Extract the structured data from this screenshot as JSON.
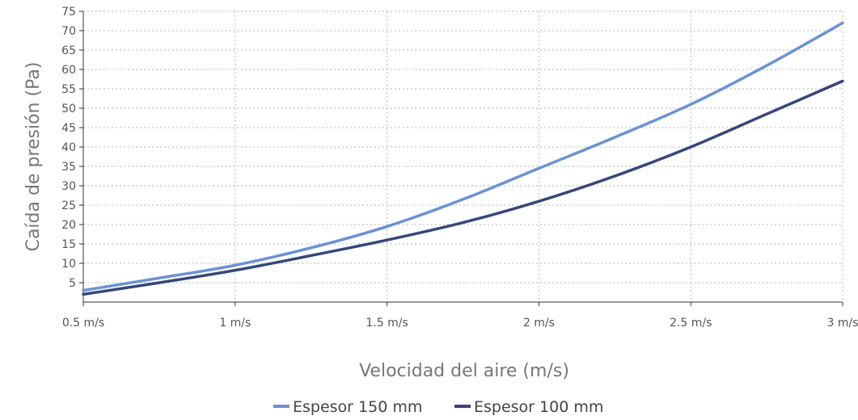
{
  "chart_data": {
    "type": "line",
    "title": "",
    "xlabel": "Velocidad del aire (m/s)",
    "ylabel": "Caída de presión (Pa)",
    "xlim": [
      0.5,
      3
    ],
    "ylim": [
      0,
      75
    ],
    "grid": true,
    "legend_position": "bottom",
    "x_ticks": [
      {
        "value": 0.5,
        "label": "0.5 m/s"
      },
      {
        "value": 1,
        "label": "1 m/s"
      },
      {
        "value": 1.5,
        "label": "1.5 m/s"
      },
      {
        "value": 2,
        "label": "2 m/s"
      },
      {
        "value": 2.5,
        "label": "2.5 m/s"
      },
      {
        "value": 3,
        "label": "3 m/s"
      }
    ],
    "y_ticks": [
      {
        "value": 5,
        "label": "5"
      },
      {
        "value": 10,
        "label": "10"
      },
      {
        "value": 15,
        "label": "15"
      },
      {
        "value": 20,
        "label": "20"
      },
      {
        "value": 25,
        "label": "25"
      },
      {
        "value": 30,
        "label": "30"
      },
      {
        "value": 35,
        "label": "35"
      },
      {
        "value": 40,
        "label": "40"
      },
      {
        "value": 45,
        "label": "45"
      },
      {
        "value": 50,
        "label": "50"
      },
      {
        "value": 55,
        "label": "55"
      },
      {
        "value": 60,
        "label": "60"
      },
      {
        "value": 65,
        "label": "65"
      },
      {
        "value": 70,
        "label": "70"
      },
      {
        "value": 75,
        "label": "75"
      }
    ],
    "series": [
      {
        "name": "Espesor 150 mm",
        "color": "#6A92D6",
        "x": [
          0.5,
          0.75,
          1,
          1.25,
          1.5,
          1.75,
          2,
          2.25,
          2.5,
          2.75,
          3
        ],
        "values": [
          3,
          6.2,
          9.5,
          14,
          19.5,
          26.5,
          34.5,
          42.5,
          51,
          61,
          72
        ]
      },
      {
        "name": "Espesor 100 mm",
        "color": "#35477C",
        "x": [
          0.5,
          0.75,
          1,
          1.25,
          1.5,
          1.75,
          2,
          2.25,
          2.5,
          2.75,
          3
        ],
        "values": [
          2,
          5,
          8.2,
          12,
          16,
          20.5,
          26,
          32.5,
          40,
          48.5,
          57
        ]
      }
    ]
  }
}
